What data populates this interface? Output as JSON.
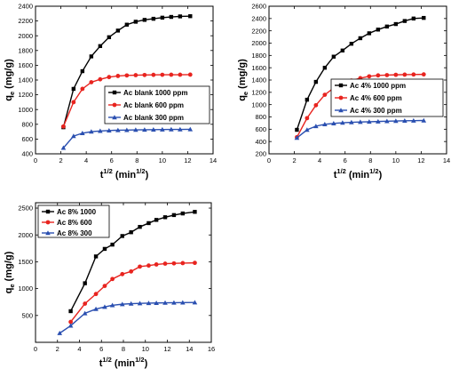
{
  "chart_data": [
    {
      "type": "line",
      "title": "",
      "xlabel": "t",
      "xlabel_superscript": "1/2",
      "xlabel_unit_open": " (min",
      "xlabel_unit_superscript": "1/2",
      "xlabel_unit_close": ")",
      "ylabel": "q",
      "ylabel_subscript": "e",
      "ylabel_unit": " (mg/g)",
      "xlim": [
        0,
        14
      ],
      "ylim": [
        400,
        2400
      ],
      "xticks": [
        "0",
        "2",
        "4",
        "6",
        "8",
        "10",
        "12",
        "14"
      ],
      "yticks": [
        "400",
        "600",
        "800",
        "1000",
        "1200",
        "1400",
        "1600",
        "1800",
        "2000",
        "2200",
        "2400"
      ],
      "grid": false,
      "legend_position": "center-right",
      "series": [
        {
          "name": "Ac blank 1000 ppm",
          "color": "#000000",
          "marker": "square",
          "x": [
            2.2,
            3.0,
            3.7,
            4.4,
            5.1,
            5.8,
            6.5,
            7.2,
            7.9,
            8.6,
            9.3,
            10.0,
            10.7,
            11.4,
            12.2
          ],
          "y": [
            760,
            1280,
            1520,
            1720,
            1860,
            1980,
            2070,
            2150,
            2190,
            2215,
            2230,
            2245,
            2255,
            2262,
            2265
          ]
        },
        {
          "name": "Ac blank 600 ppm",
          "color": "#e8241f",
          "marker": "circle",
          "x": [
            2.2,
            3.0,
            3.7,
            4.4,
            5.1,
            5.8,
            6.5,
            7.2,
            7.9,
            8.6,
            9.3,
            10.0,
            10.7,
            11.4,
            12.2
          ],
          "y": [
            770,
            1100,
            1280,
            1370,
            1410,
            1440,
            1455,
            1462,
            1466,
            1468,
            1470,
            1471,
            1472,
            1472,
            1473
          ]
        },
        {
          "name": "Ac blank 300 ppm",
          "color": "#2a4fb0",
          "marker": "triangle",
          "x": [
            2.2,
            3.0,
            3.7,
            4.4,
            5.1,
            5.8,
            6.5,
            7.2,
            7.9,
            8.6,
            9.3,
            10.0,
            10.7,
            11.4,
            12.2
          ],
          "y": [
            480,
            640,
            680,
            700,
            710,
            716,
            720,
            722,
            724,
            726,
            728,
            729,
            730,
            731,
            732
          ]
        }
      ]
    },
    {
      "type": "line",
      "title": "",
      "xlabel": "t",
      "xlabel_superscript": "1/2",
      "xlabel_unit_open": " (min",
      "xlabel_unit_superscript": "1/2",
      "xlabel_unit_close": ")",
      "ylabel": "q",
      "ylabel_subscript": "e",
      "ylabel_unit": " (mg/g)",
      "xlim": [
        0,
        14
      ],
      "ylim": [
        200,
        2600
      ],
      "xticks": [
        "0",
        "2",
        "4",
        "6",
        "8",
        "10",
        "12",
        "14"
      ],
      "yticks": [
        "200",
        "400",
        "600",
        "800",
        "1000",
        "1200",
        "1400",
        "1600",
        "1800",
        "2000",
        "2200",
        "2400",
        "2600"
      ],
      "grid": false,
      "legend_position": "center-right",
      "series": [
        {
          "name": "Ac 4% 1000 ppm",
          "color": "#000000",
          "marker": "square",
          "x": [
            2.2,
            3.0,
            3.7,
            4.4,
            5.1,
            5.8,
            6.5,
            7.2,
            7.9,
            8.6,
            9.3,
            10.0,
            10.7,
            11.4,
            12.2
          ],
          "y": [
            590,
            1080,
            1370,
            1600,
            1780,
            1880,
            1990,
            2080,
            2160,
            2220,
            2270,
            2310,
            2360,
            2400,
            2410
          ]
        },
        {
          "name": "Ac 4% 600 ppm",
          "color": "#e8241f",
          "marker": "circle",
          "x": [
            2.2,
            3.0,
            3.7,
            4.4,
            5.1,
            5.8,
            6.5,
            7.2,
            7.9,
            8.6,
            9.3,
            10.0,
            10.7,
            11.4,
            12.2
          ],
          "y": [
            470,
            780,
            990,
            1160,
            1270,
            1340,
            1390,
            1430,
            1460,
            1475,
            1480,
            1485,
            1488,
            1490,
            1492
          ]
        },
        {
          "name": "Ac 4% 300 ppm",
          "color": "#2a4fb0",
          "marker": "triangle",
          "x": [
            2.2,
            3.0,
            3.7,
            4.4,
            5.1,
            5.8,
            6.5,
            7.2,
            7.9,
            8.6,
            9.3,
            10.0,
            10.7,
            11.4,
            12.2
          ],
          "y": [
            460,
            590,
            650,
            680,
            695,
            705,
            712,
            718,
            722,
            726,
            730,
            734,
            737,
            740,
            742
          ]
        }
      ]
    },
    {
      "type": "line",
      "title": "",
      "xlabel": "t",
      "xlabel_superscript": "1/2",
      "xlabel_unit_open": " (min",
      "xlabel_unit_superscript": "1/2",
      "xlabel_unit_close": ")",
      "ylabel": "q",
      "ylabel_subscript": "e",
      "ylabel_unit": " (mg/g)",
      "xlim": [
        0,
        16
      ],
      "ylim": [
        0,
        2600
      ],
      "xticks": [
        "0",
        "2",
        "4",
        "6",
        "8",
        "10",
        "12",
        "14",
        "16"
      ],
      "yticks": [
        "500",
        "1000",
        "1500",
        "2000",
        "2500"
      ],
      "ytick_values": [
        500,
        1000,
        1500,
        2000,
        2500
      ],
      "grid": false,
      "legend_position": "top-left",
      "series": [
        {
          "name": "Ac 8% 1000",
          "color": "#000000",
          "marker": "square",
          "x": [
            3.2,
            4.5,
            5.5,
            6.3,
            7.0,
            7.9,
            8.7,
            9.5,
            10.3,
            11.0,
            11.8,
            12.6,
            13.4,
            14.5
          ],
          "y": [
            580,
            1100,
            1600,
            1740,
            1820,
            1980,
            2050,
            2150,
            2220,
            2280,
            2330,
            2370,
            2400,
            2430
          ]
        },
        {
          "name": "Ac 8% 600",
          "color": "#e8241f",
          "marker": "circle",
          "x": [
            3.2,
            4.5,
            5.5,
            6.3,
            7.0,
            7.9,
            8.7,
            9.5,
            10.3,
            11.0,
            11.8,
            12.6,
            13.4,
            14.5
          ],
          "y": [
            380,
            720,
            900,
            1050,
            1180,
            1270,
            1320,
            1410,
            1430,
            1450,
            1465,
            1470,
            1475,
            1480
          ]
        },
        {
          "name": "Ac 8% 300",
          "color": "#2a4fb0",
          "marker": "triangle",
          "x": [
            2.2,
            3.2,
            4.5,
            5.5,
            6.3,
            7.0,
            7.9,
            8.7,
            9.5,
            10.3,
            11.0,
            11.8,
            12.6,
            13.4,
            14.5
          ],
          "y": [
            170,
            310,
            540,
            620,
            660,
            690,
            710,
            720,
            725,
            730,
            733,
            736,
            738,
            740,
            742
          ]
        }
      ]
    }
  ]
}
